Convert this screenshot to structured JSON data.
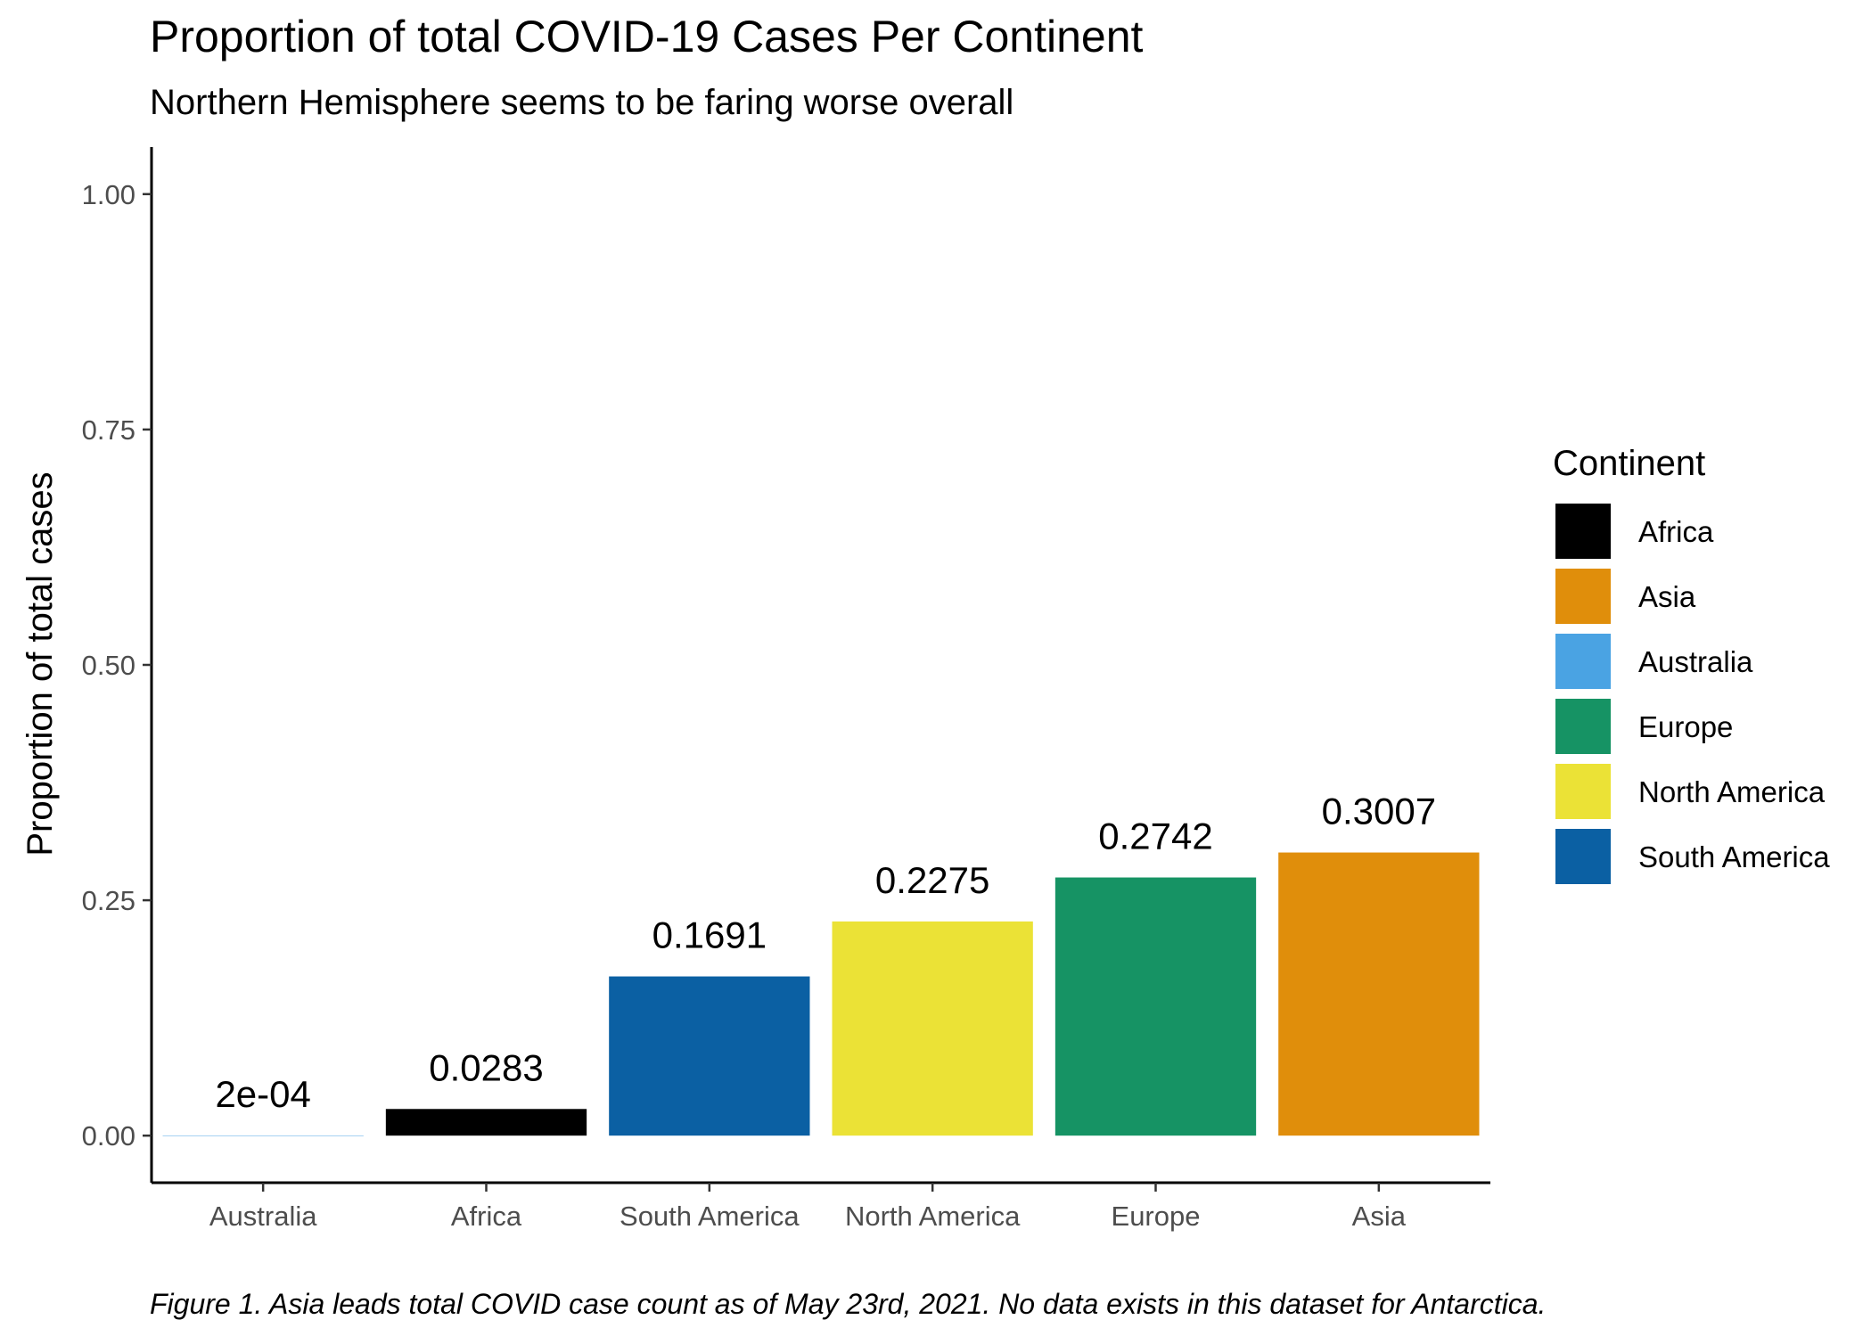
{
  "chart_data": {
    "type": "bar",
    "title": "Proportion of total COVID-19 Cases Per Continent",
    "subtitle": "Northern Hemisphere seems to be faring worse overall",
    "xlabel": "",
    "ylabel": "Proportion of total cases",
    "ylim": [
      -0.05,
      1.05
    ],
    "yticks": [
      0.0,
      0.25,
      0.5,
      0.75,
      1.0
    ],
    "ytick_labels": [
      "0.00",
      "0.25",
      "0.50",
      "0.75",
      "1.00"
    ],
    "grid": false,
    "categories": [
      "Australia",
      "Africa",
      "South America",
      "North America",
      "Europe",
      "Asia"
    ],
    "values": [
      0.0002,
      0.0283,
      0.1691,
      0.2275,
      0.2742,
      0.3007
    ],
    "data_labels": [
      "2e-04",
      "0.0283",
      "0.1691",
      "0.2275",
      "0.2742",
      "0.3007"
    ],
    "bar_colors": [
      "#4AA3E3",
      "#000000",
      "#0B60A3",
      "#EBE236",
      "#169364",
      "#E08E0B"
    ],
    "legend": {
      "title": "Continent",
      "placement": "right",
      "entries": [
        {
          "label": "Africa",
          "color": "#000000"
        },
        {
          "label": "Asia",
          "color": "#E08E0B"
        },
        {
          "label": "Australia",
          "color": "#4AA3E3"
        },
        {
          "label": "Europe",
          "color": "#169364"
        },
        {
          "label": "North America",
          "color": "#EBE236"
        },
        {
          "label": "South America",
          "color": "#0B60A3"
        }
      ]
    },
    "caption": "Figure 1. Asia leads total COVID case count as of May 23rd, 2021. No data exists in this dataset for Antarctica."
  }
}
